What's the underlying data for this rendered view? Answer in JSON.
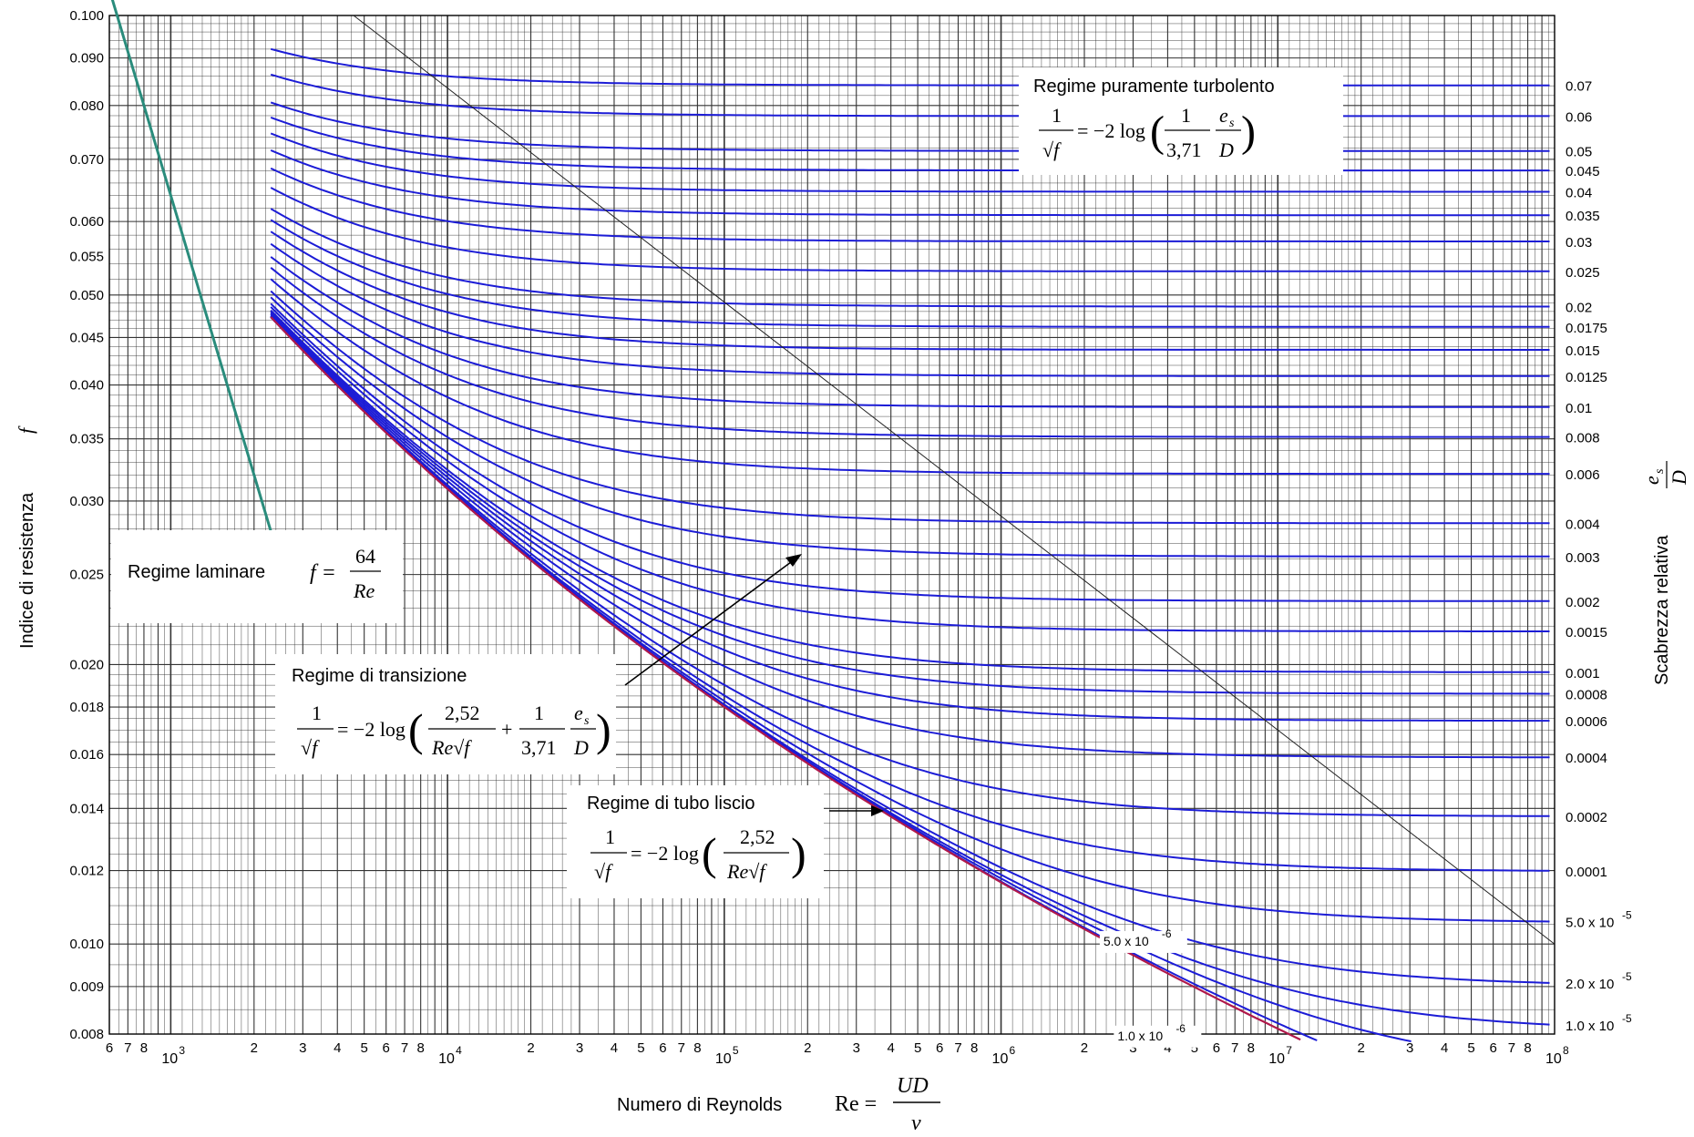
{
  "chart_data": {
    "type": "line",
    "xscale": "log",
    "yscale": "log",
    "xlim": [
      600,
      100000000
    ],
    "ylim": [
      0.008,
      0.1
    ],
    "xlabel": "Numero di Reynolds",
    "xlabel_eq": {
      "lhs": "Re =",
      "num": "UD",
      "den": "ν"
    },
    "ylabel": "Indice di resistenza",
    "ylabel_var": "f",
    "right_label": "Scabrezza relativa",
    "right_label_frac": {
      "num": "e",
      "num_sub": "s",
      "den": "D"
    },
    "grid": true,
    "y_tick_labels": [
      {
        "v": 0.1,
        "t": "0.100"
      },
      {
        "v": 0.09,
        "t": "0.090"
      },
      {
        "v": 0.08,
        "t": "0.080"
      },
      {
        "v": 0.07,
        "t": "0.070"
      },
      {
        "v": 0.06,
        "t": "0.060"
      },
      {
        "v": 0.055,
        "t": "0.055"
      },
      {
        "v": 0.05,
        "t": "0.050"
      },
      {
        "v": 0.045,
        "t": "0.045"
      },
      {
        "v": 0.04,
        "t": "0.040"
      },
      {
        "v": 0.035,
        "t": "0.035"
      },
      {
        "v": 0.03,
        "t": "0.030"
      },
      {
        "v": 0.025,
        "t": "0.025"
      },
      {
        "v": 0.02,
        "t": "0.020"
      },
      {
        "v": 0.018,
        "t": "0.018"
      },
      {
        "v": 0.016,
        "t": "0.016"
      },
      {
        "v": 0.014,
        "t": "0.014"
      },
      {
        "v": 0.012,
        "t": "0.012"
      },
      {
        "v": 0.01,
        "t": "0.010"
      },
      {
        "v": 0.009,
        "t": "0.009"
      },
      {
        "v": 0.008,
        "t": "0.008"
      }
    ],
    "x_decades": [
      {
        "v": 1000,
        "base": "10",
        "exp": "3"
      },
      {
        "v": 10000,
        "base": "10",
        "exp": "4"
      },
      {
        "v": 100000,
        "base": "10",
        "exp": "5"
      },
      {
        "v": 1000000,
        "base": "10",
        "exp": "6"
      },
      {
        "v": 10000000,
        "base": "10",
        "exp": "7"
      },
      {
        "v": 100000000,
        "base": "10",
        "exp": "8"
      }
    ],
    "x_minor_labels": [
      {
        "v": 600,
        "t": "6"
      },
      {
        "v": 700,
        "t": "7"
      },
      {
        "v": 800,
        "t": "8"
      },
      {
        "v": 2000,
        "t": "2"
      },
      {
        "v": 3000,
        "t": "3"
      },
      {
        "v": 4000,
        "t": "4"
      },
      {
        "v": 5000,
        "t": "5"
      },
      {
        "v": 6000,
        "t": "6"
      },
      {
        "v": 7000,
        "t": "7"
      },
      {
        "v": 8000,
        "t": "8"
      },
      {
        "v": 20000,
        "t": "2"
      },
      {
        "v": 30000,
        "t": "3"
      },
      {
        "v": 40000,
        "t": "4"
      },
      {
        "v": 50000,
        "t": "5"
      },
      {
        "v": 60000,
        "t": "6"
      },
      {
        "v": 70000,
        "t": "7"
      },
      {
        "v": 80000,
        "t": "8"
      },
      {
        "v": 200000,
        "t": "2"
      },
      {
        "v": 300000,
        "t": "3"
      },
      {
        "v": 400000,
        "t": "4"
      },
      {
        "v": 500000,
        "t": "5"
      },
      {
        "v": 600000,
        "t": "6"
      },
      {
        "v": 700000,
        "t": "7"
      },
      {
        "v": 800000,
        "t": "8"
      },
      {
        "v": 2000000,
        "t": "2"
      },
      {
        "v": 3000000,
        "t": "3"
      },
      {
        "v": 4000000,
        "t": "4"
      },
      {
        "v": 5000000,
        "t": "5"
      },
      {
        "v": 6000000,
        "t": "6"
      },
      {
        "v": 7000000,
        "t": "7"
      },
      {
        "v": 8000000,
        "t": "8"
      },
      {
        "v": 20000000,
        "t": "2"
      },
      {
        "v": 30000000,
        "t": "3"
      },
      {
        "v": 40000000,
        "t": "4"
      },
      {
        "v": 50000000,
        "t": "5"
      },
      {
        "v": 60000000,
        "t": "6"
      },
      {
        "v": 70000000,
        "t": "7"
      },
      {
        "v": 80000000,
        "t": "8"
      }
    ],
    "roughness_values": [
      0.07,
      0.06,
      0.05,
      0.045,
      0.04,
      0.035,
      0.03,
      0.025,
      0.02,
      0.0175,
      0.015,
      0.0125,
      0.01,
      0.008,
      0.006,
      0.004,
      0.003,
      0.002,
      0.0015,
      0.001,
      0.0008,
      0.0006,
      0.0004,
      0.0002,
      0.0001,
      5e-05,
      2e-05,
      1e-05,
      5e-06,
      1e-06
    ],
    "right_labels": [
      {
        "v": 0.07,
        "t": "0.07"
      },
      {
        "v": 0.06,
        "t": "0.06"
      },
      {
        "v": 0.05,
        "t": "0.05"
      },
      {
        "v": 0.045,
        "t": "0.045"
      },
      {
        "v": 0.04,
        "t": "0.04"
      },
      {
        "v": 0.035,
        "t": "0.035"
      },
      {
        "v": 0.03,
        "t": "0.03"
      },
      {
        "v": 0.025,
        "t": "0.025"
      },
      {
        "v": 0.02,
        "t": "0.02"
      },
      {
        "v": 0.0175,
        "t": "0.0175"
      },
      {
        "v": 0.015,
        "t": "0.015"
      },
      {
        "v": 0.0125,
        "t": "0.0125"
      },
      {
        "v": 0.01,
        "t": "0.01"
      },
      {
        "v": 0.008,
        "t": "0.008"
      },
      {
        "v": 0.006,
        "t": "0.006"
      },
      {
        "v": 0.004,
        "t": "0.004"
      },
      {
        "v": 0.003,
        "t": "0.003"
      },
      {
        "v": 0.002,
        "t": "0.002"
      },
      {
        "v": 0.0015,
        "t": "0.0015"
      },
      {
        "v": 0.001,
        "t": "0.001"
      },
      {
        "v": 0.0008,
        "t": "0.0008"
      },
      {
        "v": 0.0006,
        "t": "0.0006"
      },
      {
        "v": 0.0004,
        "t": "0.0004"
      },
      {
        "v": 0.0002,
        "t": "0.0002"
      },
      {
        "v": 0.0001,
        "t": "0.0001"
      },
      {
        "v": 5e-05,
        "t": "5.0 x 10",
        "exp": "-5"
      },
      {
        "v": 2e-05,
        "t": "2.0 x 10",
        "exp": "-5"
      },
      {
        "v": 1e-05,
        "t": "1.0 x 10",
        "exp": "-5"
      }
    ],
    "inner_labels": [
      {
        "v": 5e-06,
        "t": "5.0 x 10",
        "exp": "-6"
      },
      {
        "v": 1e-06,
        "t": "1.0 x 10",
        "exp": "-6"
      }
    ],
    "laminar": {
      "equation": "f = 64/Re",
      "x_range": [
        600,
        2300
      ]
    },
    "turbulent_start_re": 2300,
    "smooth_pipe_curve": true,
    "boundary_line": "complete turbulence limit"
  },
  "annotations": {
    "turbolento": {
      "title": "Regime puramente turbolento",
      "lhs_num": "1",
      "lhs_den": "√f",
      "rhs": "= −2 log",
      "a": "1",
      "b": "3,71",
      "c": "e",
      "c_sub": "s",
      "d": "D"
    },
    "laminare": {
      "title": "Regime laminare",
      "lhs": "f =",
      "num": "64",
      "den": "Re"
    },
    "transizione": {
      "title": "Regime di transizione",
      "lhs_num": "1",
      "lhs_den": "√f",
      "rhs": "= −2 log",
      "a": "2,52",
      "b": "Re√f",
      "plus": "+",
      "c": "1",
      "d": "3,71",
      "e": "e",
      "e_sub": "s",
      "f": "D"
    },
    "liscio": {
      "title": "Regime di tubo liscio",
      "lhs_num": "1",
      "lhs_den": "√f",
      "rhs": "= −2 log",
      "a": "2,52",
      "b": "Re√f"
    }
  },
  "colors": {
    "rough_curves": "#1c1cd6",
    "smooth_curve": "#b0184a",
    "laminar": "#2a8c7c",
    "grid": "#333333",
    "boundary": "#222222"
  }
}
